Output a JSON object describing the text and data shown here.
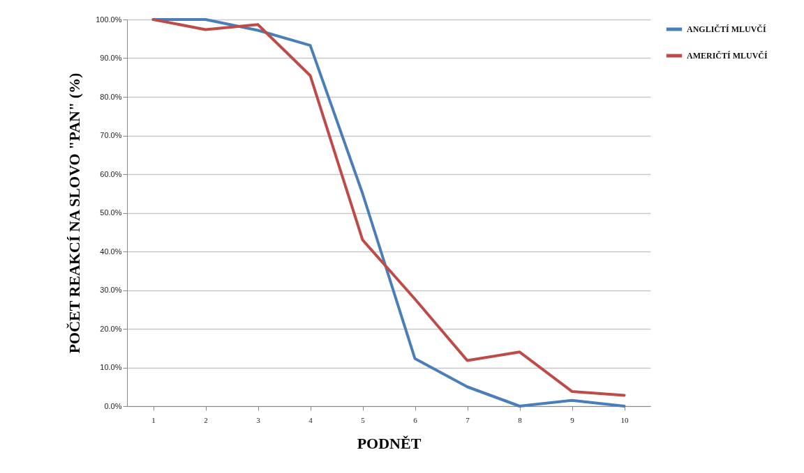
{
  "chart_data": {
    "type": "line",
    "xlabel": "PODNĚT",
    "ylabel": "POČET REAKCÍ NA SLOVO \"PAN\" (%)",
    "categories": [
      "1",
      "2",
      "3",
      "4",
      "5",
      "6",
      "7",
      "8",
      "9",
      "10"
    ],
    "series": [
      {
        "name": "ANGLIČTÍ MLUVČÍ",
        "color": "#4a7ebb",
        "values": [
          100,
          100,
          97.2,
          93.3,
          55,
          12.3,
          5,
          0,
          1.5,
          0
        ]
      },
      {
        "name": "AMERIČTÍ MLUVČÍ",
        "color": "#be4b48",
        "values": [
          100,
          97.4,
          98.7,
          85.5,
          43,
          27.7,
          11.8,
          14,
          3.8,
          2.8
        ]
      }
    ],
    "ylim": [
      0,
      100
    ],
    "yticks": [
      {
        "value": 0,
        "label": "0.0%"
      },
      {
        "value": 10,
        "label": "10.0%"
      },
      {
        "value": 20,
        "label": "20.0%"
      },
      {
        "value": 30,
        "label": "30.0%"
      },
      {
        "value": 40,
        "label": "40.0%"
      },
      {
        "value": 50,
        "label": "50.0%"
      },
      {
        "value": 60,
        "label": "60.0%"
      },
      {
        "value": 70,
        "label": "70.0%"
      },
      {
        "value": 80,
        "label": "80.0%"
      },
      {
        "value": 90,
        "label": "90.0%"
      },
      {
        "value": 100,
        "label": "100.0%"
      }
    ],
    "grid": "y",
    "legend": "right",
    "marker": "none",
    "line_style": "solid"
  }
}
